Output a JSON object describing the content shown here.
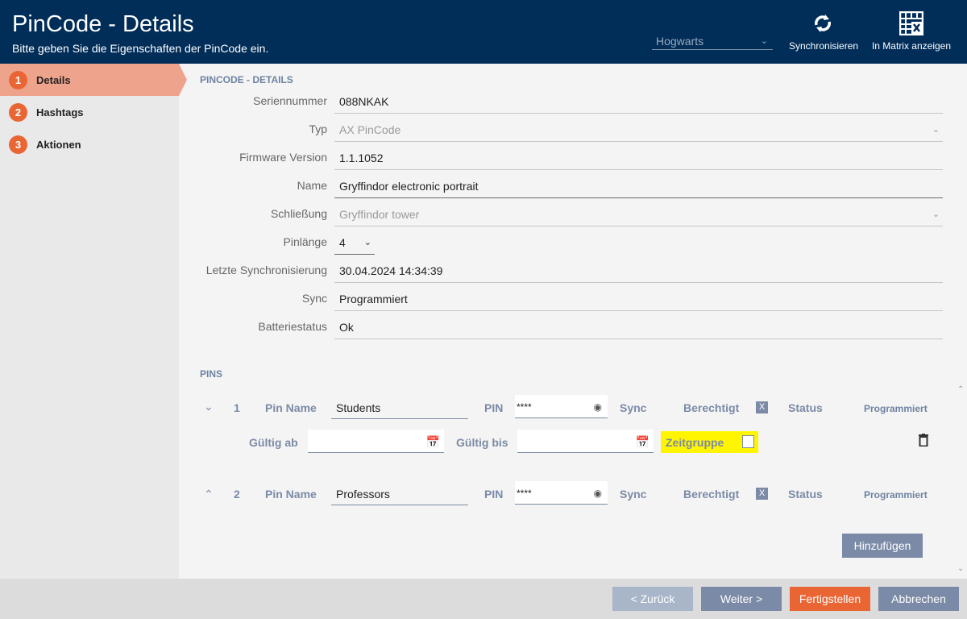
{
  "header": {
    "title": "PinCode - Details",
    "subtitle": "Bitte geben Sie die Eigenschaften der PinCode ein.",
    "client": "Hogwarts",
    "sync_label": "Synchronisieren",
    "matrix_label": "In Matrix anzeigen"
  },
  "steps": [
    {
      "num": "1",
      "label": "Details",
      "active": true
    },
    {
      "num": "2",
      "label": "Hashtags"
    },
    {
      "num": "3",
      "label": "Aktionen"
    }
  ],
  "details": {
    "section": "PINCODE - DETAILS",
    "fields": [
      {
        "label": "Seriennummer",
        "value": "088NKAK"
      },
      {
        "label": "Typ",
        "value": "AX PinCode"
      },
      {
        "label": "Firmware Version",
        "value": "1.1.1052"
      },
      {
        "label": "Name",
        "value": "Gryffindor electronic portrait"
      },
      {
        "label": "Schließung",
        "value": "Gryffindor tower"
      },
      {
        "label": "Pinlänge",
        "value": "4"
      },
      {
        "label": "Letzte Synchronisierung",
        "value": "30.04.2024 14:34:39"
      },
      {
        "label": "Sync",
        "value": "Programmiert"
      },
      {
        "label": "Batteriestatus",
        "value": "Ok"
      }
    ]
  },
  "pins": {
    "section": "PINS",
    "labels": {
      "pin_name": "Pin Name",
      "pin": "PIN",
      "sync": "Sync",
      "berechtigt": "Berechtigt",
      "status": "Status",
      "gueltig_ab": "Gültig ab",
      "gueltig_bis": "Gültig bis",
      "zeitgruppe": "Zeitgruppe"
    },
    "rows": [
      {
        "num": "1",
        "name": "Students",
        "pin": "****",
        "berechtigt": "X",
        "status": "Programmiert",
        "expanded": true,
        "gueltig_ab": "",
        "gueltig_bis": "",
        "zeitgruppe": false
      },
      {
        "num": "2",
        "name": "Professors",
        "pin": "****",
        "berechtigt": "X",
        "status": "Programmiert",
        "expanded": false
      }
    ],
    "add_label": "Hinzufügen"
  },
  "footer": {
    "back": "< Zurück",
    "next": "Weiter >",
    "finish": "Fertigstellen",
    "cancel": "Abbrechen"
  },
  "colors": {
    "header": "#012d59",
    "accent": "#ea6534",
    "button": "#7b8aa6",
    "highlight": "#fff500"
  }
}
